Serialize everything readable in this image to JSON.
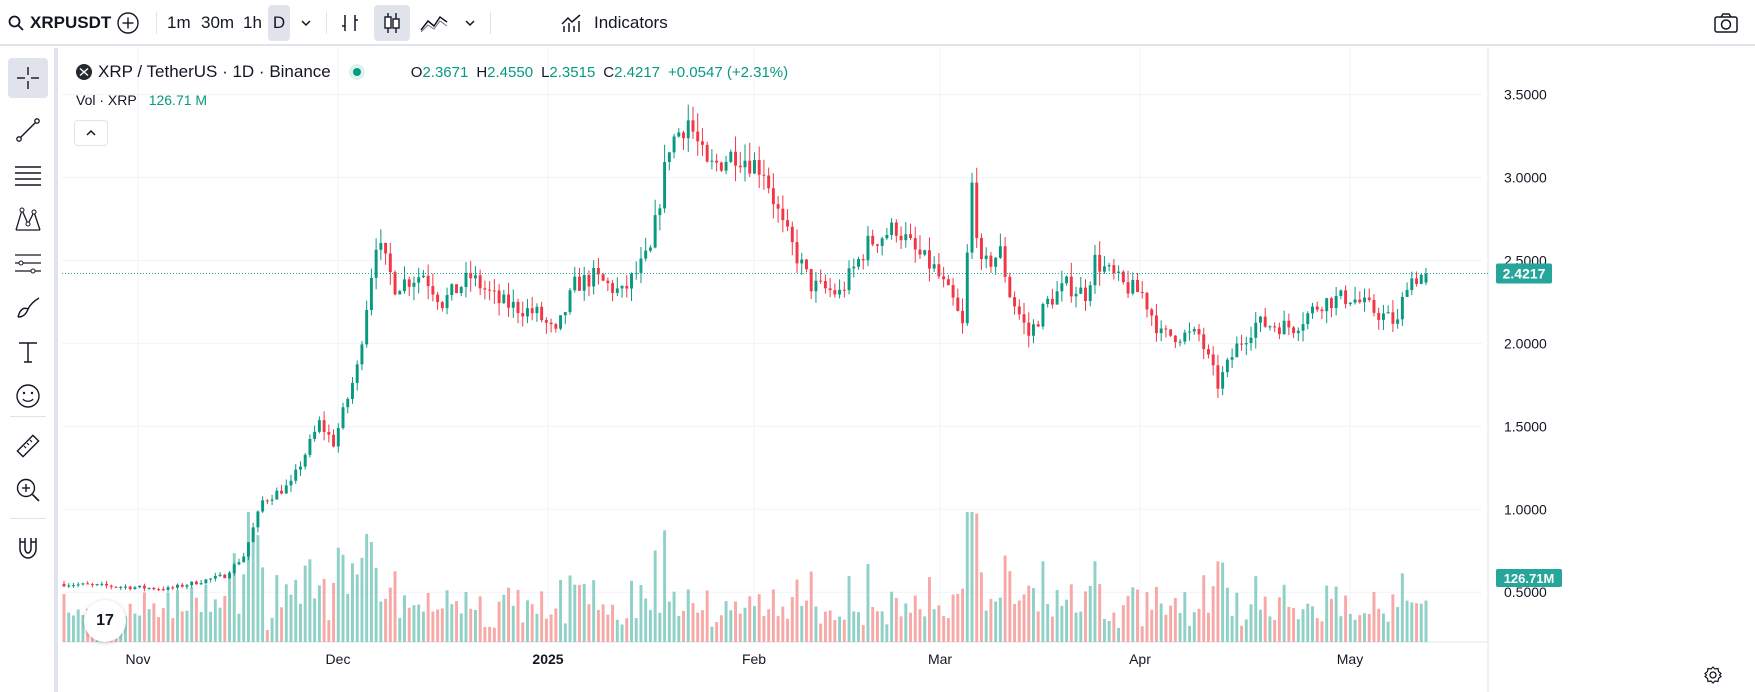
{
  "topbar": {
    "symbol": "XRPUSDT",
    "intervals": [
      {
        "label": "1m",
        "active": false
      },
      {
        "label": "30m",
        "active": false
      },
      {
        "label": "1h",
        "active": false
      },
      {
        "label": "D",
        "active": true
      }
    ],
    "indicators_label": "Indicators"
  },
  "legend": {
    "title": "XRP / TetherUS · 1D · Binance",
    "open_label": "O",
    "open": "2.3671",
    "high_label": "H",
    "high": "2.4550",
    "low_label": "L",
    "low": "2.3515",
    "close_label": "C",
    "close": "2.4217",
    "change": "+0.0547 (+2.31%)",
    "vol_label": "Vol · XRP",
    "vol_value": "126.71 M"
  },
  "price_axis": {
    "ticks": [
      "3.5000",
      "3.0000",
      "2.5000",
      "2.0000",
      "1.5000",
      "1.0000",
      "0.5000"
    ],
    "last_price": "2.4217",
    "last_volume": "126.71M"
  },
  "time_axis": {
    "labels": [
      "Nov",
      "Dec",
      "2025",
      "Feb",
      "Mar",
      "Apr",
      "May"
    ]
  },
  "logo_text": "17",
  "colors": {
    "up": "#089981",
    "down": "#f23645",
    "vol_up": "#8fd1c6",
    "vol_down": "#f7a9a7",
    "last_price_bg": "#26a69a",
    "grid": "#f0f3fa"
  },
  "chart_data": {
    "type": "candlestick",
    "ylim": [
      0.2,
      3.6
    ],
    "ticks": [
      3.5,
      3.0,
      2.5,
      2.0,
      1.5,
      1.0,
      0.5
    ],
    "last_price": 2.4217,
    "waypoints": [
      [
        0,
        0.55
      ],
      [
        22,
        0.52
      ],
      [
        34,
        0.6
      ],
      [
        38,
        0.72
      ],
      [
        42,
        1.05
      ],
      [
        48,
        1.15
      ],
      [
        54,
        1.52
      ],
      [
        57,
        1.4
      ],
      [
        62,
        1.85
      ],
      [
        66,
        2.62
      ],
      [
        70,
        2.35
      ],
      [
        76,
        2.42
      ],
      [
        80,
        2.25
      ],
      [
        86,
        2.4
      ],
      [
        92,
        2.25
      ],
      [
        100,
        2.18
      ],
      [
        104,
        2.05
      ],
      [
        108,
        2.35
      ],
      [
        112,
        2.4
      ],
      [
        118,
        2.3
      ],
      [
        124,
        2.55
      ],
      [
        128,
        3.2
      ],
      [
        132,
        3.35
      ],
      [
        136,
        3.05
      ],
      [
        142,
        3.15
      ],
      [
        148,
        3.05
      ],
      [
        152,
        2.7
      ],
      [
        158,
        2.35
      ],
      [
        164,
        2.3
      ],
      [
        170,
        2.6
      ],
      [
        176,
        2.7
      ],
      [
        180,
        2.55
      ],
      [
        184,
        2.45
      ],
      [
        188,
        2.25
      ],
      [
        190,
        2.1
      ],
      [
        192,
        2.95
      ],
      [
        194,
        2.45
      ],
      [
        198,
        2.55
      ],
      [
        200,
        2.3
      ],
      [
        204,
        2.05
      ],
      [
        208,
        2.25
      ],
      [
        212,
        2.35
      ],
      [
        216,
        2.3
      ],
      [
        218,
        2.5
      ],
      [
        224,
        2.35
      ],
      [
        228,
        2.3
      ],
      [
        232,
        2.05
      ],
      [
        240,
        2.05
      ],
      [
        244,
        1.75
      ],
      [
        248,
        1.98
      ],
      [
        252,
        2.12
      ],
      [
        260,
        2.1
      ],
      [
        266,
        2.25
      ],
      [
        272,
        2.28
      ],
      [
        278,
        2.18
      ],
      [
        282,
        2.12
      ],
      [
        284,
        2.38
      ],
      [
        288,
        2.42
      ]
    ],
    "volume_scale": [
      0,
      1.2
    ],
    "volume_last": 126.71
  }
}
